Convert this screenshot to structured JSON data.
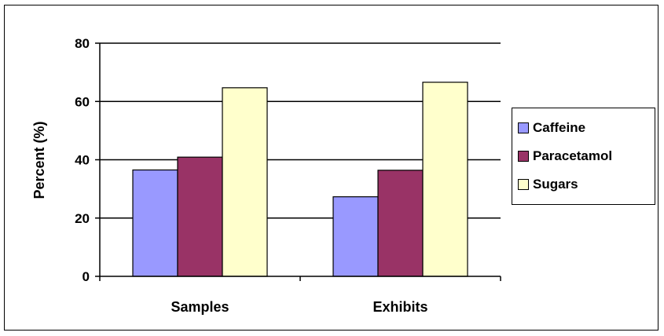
{
  "chart_data": {
    "type": "bar",
    "categories": [
      "Samples",
      "Exhibits"
    ],
    "series": [
      {
        "name": "Caffeine",
        "values": [
          36.5,
          27.3
        ],
        "color": "#9999FF"
      },
      {
        "name": "Paracetamol",
        "values": [
          40.9,
          36.4
        ],
        "color": "#993366"
      },
      {
        "name": "Sugars",
        "values": [
          64.7,
          66.6
        ],
        "color": "#FFFFCC"
      }
    ],
    "title": "",
    "xlabel": "",
    "ylabel": "Percent (%)",
    "ylim": [
      0,
      80
    ],
    "yticks": [
      "0",
      "20",
      "40",
      "60",
      "80"
    ],
    "grid": "horizontal",
    "legend_position": "right"
  }
}
